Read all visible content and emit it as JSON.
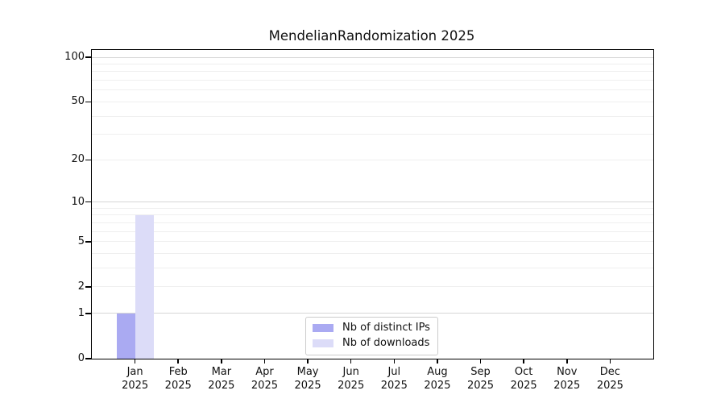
{
  "title": "MendelianRandomization 2025",
  "colors": {
    "distinct_ips": "#aaaaf2",
    "downloads": "#dcdcf8",
    "axis": "#000000",
    "grid_major": "#d6d6d6",
    "grid_minor": "#efefef",
    "legend_border": "#cccccc",
    "background": "#ffffff"
  },
  "chart_data": {
    "type": "bar",
    "title": "MendelianRandomization 2025",
    "x_categories_month": [
      "Jan",
      "Feb",
      "Mar",
      "Apr",
      "May",
      "Jun",
      "Jul",
      "Aug",
      "Sep",
      "Oct",
      "Nov",
      "Dec"
    ],
    "x_year": "2025",
    "series": [
      {
        "name": "Nb of distinct IPs",
        "color": "#aaaaf2",
        "values": [
          1,
          0,
          0,
          0,
          0,
          0,
          0,
          0,
          0,
          0,
          0,
          0
        ]
      },
      {
        "name": "Nb of downloads",
        "color": "#dcdcf8",
        "values": [
          8,
          0,
          0,
          0,
          0,
          0,
          0,
          0,
          0,
          0,
          0,
          0
        ]
      }
    ],
    "y_scale": "log1p",
    "y_ticks": [
      0,
      1,
      2,
      5,
      10,
      20,
      50,
      100
    ],
    "grid_major_values": [
      1,
      10,
      100
    ],
    "grid_minor_values": [
      2,
      3,
      4,
      5,
      6,
      7,
      8,
      9,
      20,
      30,
      40,
      50,
      60,
      70,
      80,
      90
    ],
    "ylim": [
      0,
      112
    ],
    "grid": true,
    "legend_position": "bottom-center"
  }
}
